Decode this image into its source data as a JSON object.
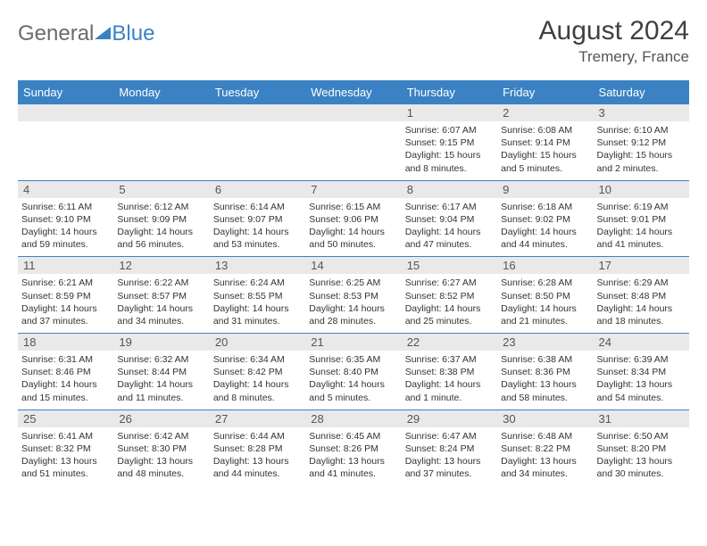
{
  "brand": {
    "part1": "General",
    "part2": "Blue"
  },
  "title": "August 2024",
  "location": "Tremery, France",
  "colors": {
    "accent": "#3b82c4",
    "header_text": "#ffffff",
    "daynum_bg": "#e9e9e9",
    "text": "#333333",
    "muted": "#555555",
    "background": "#ffffff"
  },
  "typography": {
    "title_fontsize_pt": 22,
    "location_fontsize_pt": 13,
    "header_fontsize_pt": 10,
    "daynum_fontsize_pt": 10,
    "body_fontsize_pt": 8
  },
  "layout": {
    "columns": 7,
    "rows": 5,
    "column_headers_bg": "#3b82c4",
    "week_divider_color": "#3b82c4"
  },
  "day_labels": [
    "Sunday",
    "Monday",
    "Tuesday",
    "Wednesday",
    "Thursday",
    "Friday",
    "Saturday"
  ],
  "days": [
    {
      "n": "",
      "sr": "",
      "ss": "",
      "dl": ""
    },
    {
      "n": "",
      "sr": "",
      "ss": "",
      "dl": ""
    },
    {
      "n": "",
      "sr": "",
      "ss": "",
      "dl": ""
    },
    {
      "n": "",
      "sr": "",
      "ss": "",
      "dl": ""
    },
    {
      "n": "1",
      "sr": "Sunrise: 6:07 AM",
      "ss": "Sunset: 9:15 PM",
      "dl": "Daylight: 15 hours and 8 minutes."
    },
    {
      "n": "2",
      "sr": "Sunrise: 6:08 AM",
      "ss": "Sunset: 9:14 PM",
      "dl": "Daylight: 15 hours and 5 minutes."
    },
    {
      "n": "3",
      "sr": "Sunrise: 6:10 AM",
      "ss": "Sunset: 9:12 PM",
      "dl": "Daylight: 15 hours and 2 minutes."
    },
    {
      "n": "4",
      "sr": "Sunrise: 6:11 AM",
      "ss": "Sunset: 9:10 PM",
      "dl": "Daylight: 14 hours and 59 minutes."
    },
    {
      "n": "5",
      "sr": "Sunrise: 6:12 AM",
      "ss": "Sunset: 9:09 PM",
      "dl": "Daylight: 14 hours and 56 minutes."
    },
    {
      "n": "6",
      "sr": "Sunrise: 6:14 AM",
      "ss": "Sunset: 9:07 PM",
      "dl": "Daylight: 14 hours and 53 minutes."
    },
    {
      "n": "7",
      "sr": "Sunrise: 6:15 AM",
      "ss": "Sunset: 9:06 PM",
      "dl": "Daylight: 14 hours and 50 minutes."
    },
    {
      "n": "8",
      "sr": "Sunrise: 6:17 AM",
      "ss": "Sunset: 9:04 PM",
      "dl": "Daylight: 14 hours and 47 minutes."
    },
    {
      "n": "9",
      "sr": "Sunrise: 6:18 AM",
      "ss": "Sunset: 9:02 PM",
      "dl": "Daylight: 14 hours and 44 minutes."
    },
    {
      "n": "10",
      "sr": "Sunrise: 6:19 AM",
      "ss": "Sunset: 9:01 PM",
      "dl": "Daylight: 14 hours and 41 minutes."
    },
    {
      "n": "11",
      "sr": "Sunrise: 6:21 AM",
      "ss": "Sunset: 8:59 PM",
      "dl": "Daylight: 14 hours and 37 minutes."
    },
    {
      "n": "12",
      "sr": "Sunrise: 6:22 AM",
      "ss": "Sunset: 8:57 PM",
      "dl": "Daylight: 14 hours and 34 minutes."
    },
    {
      "n": "13",
      "sr": "Sunrise: 6:24 AM",
      "ss": "Sunset: 8:55 PM",
      "dl": "Daylight: 14 hours and 31 minutes."
    },
    {
      "n": "14",
      "sr": "Sunrise: 6:25 AM",
      "ss": "Sunset: 8:53 PM",
      "dl": "Daylight: 14 hours and 28 minutes."
    },
    {
      "n": "15",
      "sr": "Sunrise: 6:27 AM",
      "ss": "Sunset: 8:52 PM",
      "dl": "Daylight: 14 hours and 25 minutes."
    },
    {
      "n": "16",
      "sr": "Sunrise: 6:28 AM",
      "ss": "Sunset: 8:50 PM",
      "dl": "Daylight: 14 hours and 21 minutes."
    },
    {
      "n": "17",
      "sr": "Sunrise: 6:29 AM",
      "ss": "Sunset: 8:48 PM",
      "dl": "Daylight: 14 hours and 18 minutes."
    },
    {
      "n": "18",
      "sr": "Sunrise: 6:31 AM",
      "ss": "Sunset: 8:46 PM",
      "dl": "Daylight: 14 hours and 15 minutes."
    },
    {
      "n": "19",
      "sr": "Sunrise: 6:32 AM",
      "ss": "Sunset: 8:44 PM",
      "dl": "Daylight: 14 hours and 11 minutes."
    },
    {
      "n": "20",
      "sr": "Sunrise: 6:34 AM",
      "ss": "Sunset: 8:42 PM",
      "dl": "Daylight: 14 hours and 8 minutes."
    },
    {
      "n": "21",
      "sr": "Sunrise: 6:35 AM",
      "ss": "Sunset: 8:40 PM",
      "dl": "Daylight: 14 hours and 5 minutes."
    },
    {
      "n": "22",
      "sr": "Sunrise: 6:37 AM",
      "ss": "Sunset: 8:38 PM",
      "dl": "Daylight: 14 hours and 1 minute."
    },
    {
      "n": "23",
      "sr": "Sunrise: 6:38 AM",
      "ss": "Sunset: 8:36 PM",
      "dl": "Daylight: 13 hours and 58 minutes."
    },
    {
      "n": "24",
      "sr": "Sunrise: 6:39 AM",
      "ss": "Sunset: 8:34 PM",
      "dl": "Daylight: 13 hours and 54 minutes."
    },
    {
      "n": "25",
      "sr": "Sunrise: 6:41 AM",
      "ss": "Sunset: 8:32 PM",
      "dl": "Daylight: 13 hours and 51 minutes."
    },
    {
      "n": "26",
      "sr": "Sunrise: 6:42 AM",
      "ss": "Sunset: 8:30 PM",
      "dl": "Daylight: 13 hours and 48 minutes."
    },
    {
      "n": "27",
      "sr": "Sunrise: 6:44 AM",
      "ss": "Sunset: 8:28 PM",
      "dl": "Daylight: 13 hours and 44 minutes."
    },
    {
      "n": "28",
      "sr": "Sunrise: 6:45 AM",
      "ss": "Sunset: 8:26 PM",
      "dl": "Daylight: 13 hours and 41 minutes."
    },
    {
      "n": "29",
      "sr": "Sunrise: 6:47 AM",
      "ss": "Sunset: 8:24 PM",
      "dl": "Daylight: 13 hours and 37 minutes."
    },
    {
      "n": "30",
      "sr": "Sunrise: 6:48 AM",
      "ss": "Sunset: 8:22 PM",
      "dl": "Daylight: 13 hours and 34 minutes."
    },
    {
      "n": "31",
      "sr": "Sunrise: 6:50 AM",
      "ss": "Sunset: 8:20 PM",
      "dl": "Daylight: 13 hours and 30 minutes."
    }
  ]
}
